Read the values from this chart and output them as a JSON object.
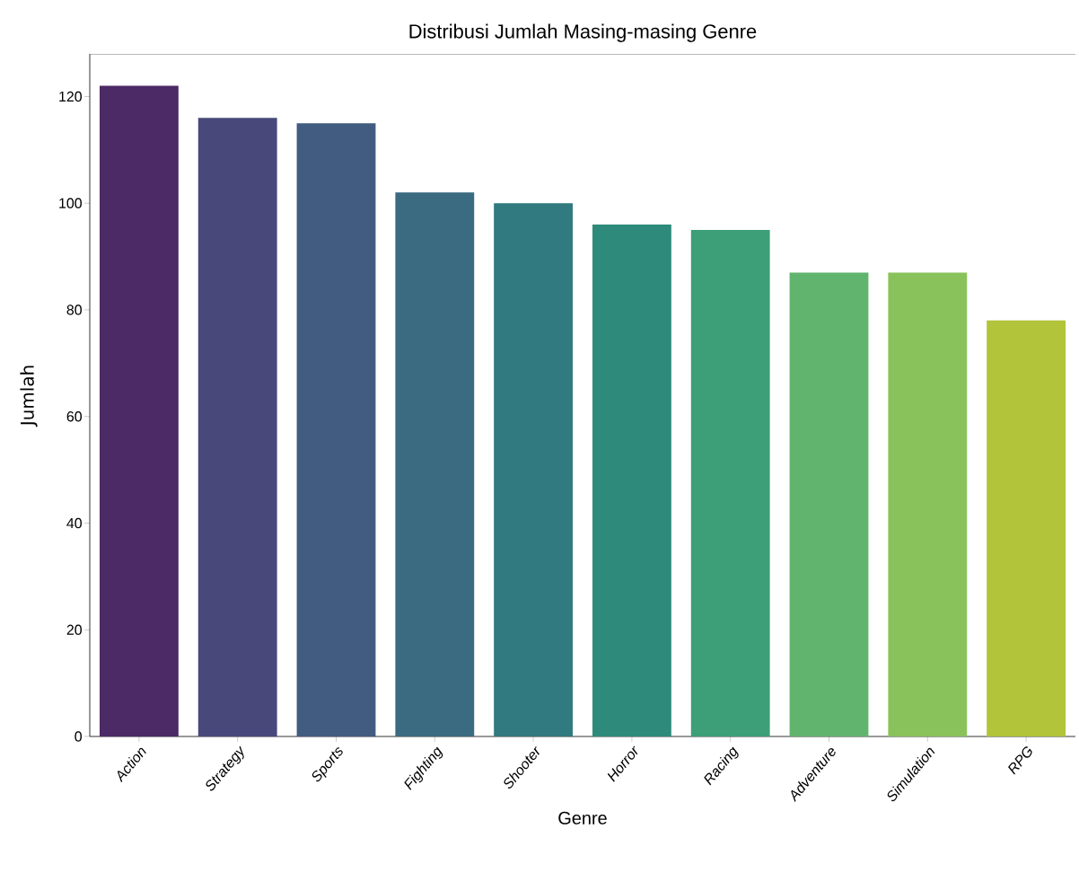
{
  "chart_data": {
    "type": "bar",
    "title": "Distribusi Jumlah Masing-masing Genre",
    "xlabel": "Genre",
    "ylabel": "Jumlah",
    "categories": [
      "Action",
      "Strategy",
      "Sports",
      "Fighting",
      "Shooter",
      "Horror",
      "Racing",
      "Adventure",
      "Simulation",
      "RPG"
    ],
    "values": [
      122,
      116,
      115,
      102,
      100,
      96,
      95,
      87,
      87,
      78
    ],
    "colors": [
      "#4b2a66",
      "#48487a",
      "#425b80",
      "#3a6b80",
      "#317a7f",
      "#2e8b7b",
      "#3d9f78",
      "#61b46e",
      "#89c25a",
      "#b1c43a"
    ],
    "ylim": [
      0,
      128
    ],
    "yticks": [
      0,
      20,
      40,
      60,
      80,
      100,
      120
    ]
  }
}
